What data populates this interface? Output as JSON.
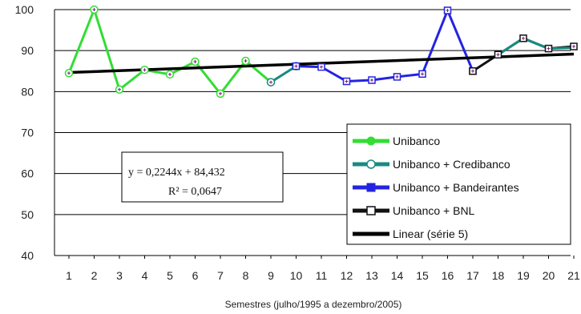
{
  "chart_data": {
    "type": "line",
    "xlabel": "Semestres (julho/1995 a dezembro/2005)",
    "ylabel": "",
    "ylim": [
      40,
      100
    ],
    "yticks": [
      40,
      50,
      60,
      70,
      80,
      90,
      100
    ],
    "x": [
      1,
      2,
      3,
      4,
      5,
      6,
      7,
      8,
      9,
      10,
      11,
      12,
      13,
      14,
      15,
      16,
      17,
      18,
      19,
      20,
      21
    ],
    "grid": true,
    "legend_position": "right",
    "series": [
      {
        "name": "Unibanco",
        "color": "#33dd33",
        "marker": "circle",
        "points": [
          [
            1,
            84.5
          ],
          [
            2,
            100
          ],
          [
            3,
            80.5
          ],
          [
            4,
            85.3
          ],
          [
            5,
            84.2
          ],
          [
            6,
            87.3
          ],
          [
            7,
            79.5
          ],
          [
            8,
            87.5
          ],
          [
            9,
            82.3
          ]
        ]
      },
      {
        "name": "Unibanco + Credibanco",
        "color": "#1a8a80",
        "marker": "circle",
        "points": [
          [
            9,
            82.3
          ],
          [
            10,
            86.2
          ]
        ]
      },
      {
        "name": "Unibanco + Bandeirantes",
        "color": "#2424e0",
        "marker": "square",
        "points": [
          [
            10,
            86.2
          ],
          [
            11,
            86
          ],
          [
            12,
            82.5
          ],
          [
            13,
            82.8
          ],
          [
            14,
            83.6
          ],
          [
            15,
            84.3
          ],
          [
            16,
            99.8
          ],
          [
            17,
            85
          ]
        ]
      },
      {
        "name": "Unibanco + BNL",
        "color": "#111111",
        "marker": "square",
        "points": [
          [
            17,
            85
          ],
          [
            18,
            89
          ],
          [
            19,
            93
          ],
          [
            20,
            90.5
          ],
          [
            21,
            91
          ]
        ]
      },
      {
        "name": "Unibanco + BNL",
        "color": "#1a8a80",
        "marker": "none",
        "points": [
          [
            18,
            89
          ],
          [
            19,
            93
          ],
          [
            20,
            90.5
          ],
          [
            21,
            90.7
          ]
        ]
      },
      {
        "name": "Linear (série 5)",
        "color": "#000000",
        "marker": "none",
        "trend": true,
        "points": [
          [
            1,
            84.656
          ],
          [
            21,
            89.144
          ]
        ]
      }
    ],
    "legend": [
      {
        "label": "Unibanco",
        "color": "#33dd33",
        "marker": "circle-filled"
      },
      {
        "label": "Unibanco + Credibanco",
        "color": "#1a8a80",
        "marker": "circle-open"
      },
      {
        "label": "Unibanco + Bandeirantes",
        "color": "#2424e0",
        "marker": "square-filled"
      },
      {
        "label": "Unibanco + BNL",
        "color": "#111111",
        "marker": "square-open"
      },
      {
        "label": "Linear (série 5)",
        "color": "#000000",
        "marker": "none"
      }
    ],
    "annotation": {
      "equation": "y = 0,2244x + 84,432",
      "r2": "R² = 0,0647"
    }
  }
}
